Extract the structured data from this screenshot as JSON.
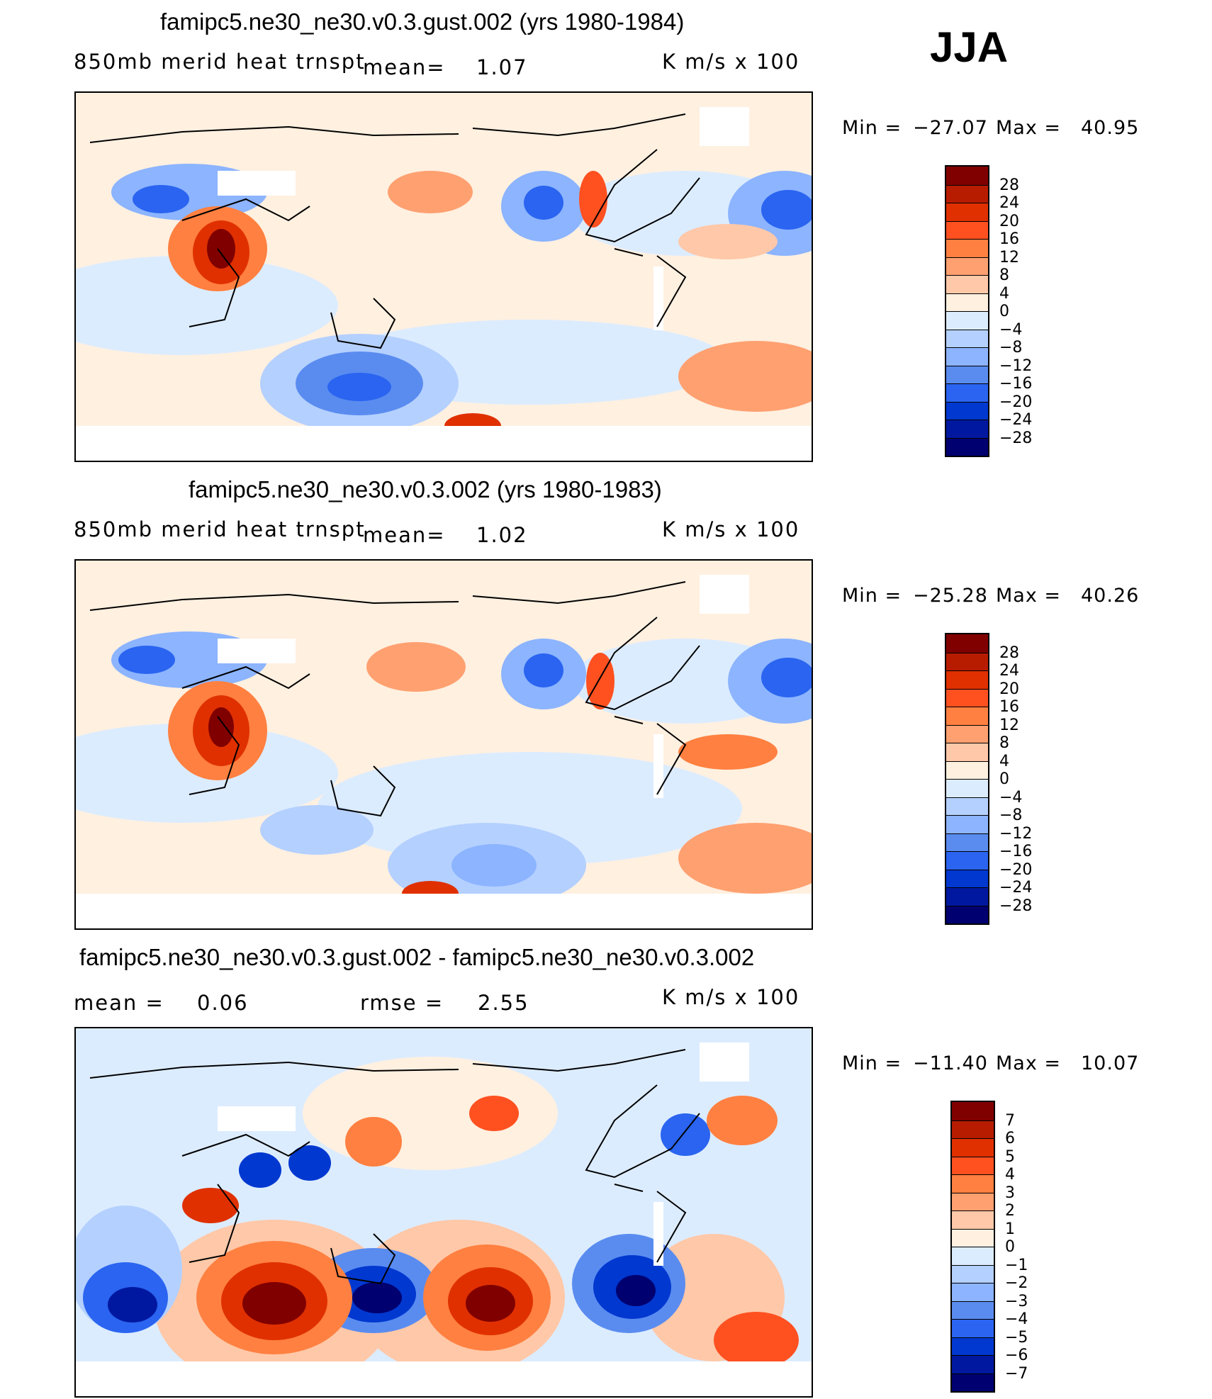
{
  "season": "JJA",
  "chart_data": [
    {
      "type": "heatmap",
      "title": "famipc5.ne30_ne30.v0.3.gust.002 (yrs 1980-1984)",
      "variable": "850mb merid heat trnspt",
      "mean_label": "mean=",
      "mean_value": "1.07",
      "units": "K m/s x 100",
      "min_label": "Min =",
      "min_value": "−27.07",
      "max_label": "Max =",
      "max_value": "40.95",
      "levels": [
        "28",
        "24",
        "20",
        "16",
        "12",
        "8",
        "4",
        "0",
        "−4",
        "−8",
        "−12",
        "−16",
        "−20",
        "−24",
        "−28"
      ],
      "colors": [
        "#800000",
        "#b81c00",
        "#e03000",
        "#ff5020",
        "#ff8040",
        "#ffa070",
        "#ffc8a8",
        "#fff0e0",
        "#dcecff",
        "#b4d0ff",
        "#8cb4ff",
        "#5a8cf0",
        "#2a64f0",
        "#0038d0",
        "#0018a0",
        "#000070"
      ]
    },
    {
      "type": "heatmap",
      "title": "famipc5.ne30_ne30.v0.3.002 (yrs 1980-1983)",
      "variable": "850mb merid heat trnspt",
      "mean_label": "mean=",
      "mean_value": "1.02",
      "units": "K m/s x 100",
      "min_label": "Min =",
      "min_value": "−25.28",
      "max_label": "Max =",
      "max_value": "40.26",
      "levels": [
        "28",
        "24",
        "20",
        "16",
        "12",
        "8",
        "4",
        "0",
        "−4",
        "−8",
        "−12",
        "−16",
        "−20",
        "−24",
        "−28"
      ],
      "colors": [
        "#800000",
        "#b81c00",
        "#e03000",
        "#ff5020",
        "#ff8040",
        "#ffa070",
        "#ffc8a8",
        "#fff0e0",
        "#dcecff",
        "#b4d0ff",
        "#8cb4ff",
        "#5a8cf0",
        "#2a64f0",
        "#0038d0",
        "#0018a0",
        "#000070"
      ]
    },
    {
      "type": "heatmap",
      "title": "famipc5.ne30_ne30.v0.3.gust.002 - famipc5.ne30_ne30.v0.3.002",
      "mean_label": "mean =",
      "mean_value": "0.06",
      "rmse_label": "rmse =",
      "rmse_value": "2.55",
      "units": "K m/s x 100",
      "min_label": "Min =",
      "min_value": "−11.40",
      "max_label": "Max =",
      "max_value": "10.07",
      "levels": [
        "7",
        "6",
        "5",
        "4",
        "3",
        "2",
        "1",
        "0",
        "−1",
        "−2",
        "−3",
        "−4",
        "−5",
        "−6",
        "−7"
      ],
      "colors": [
        "#800000",
        "#b81c00",
        "#e03000",
        "#ff5020",
        "#ff8040",
        "#ffa070",
        "#ffc8a8",
        "#fff0e0",
        "#dcecff",
        "#b4d0ff",
        "#8cb4ff",
        "#5a8cf0",
        "#2a64f0",
        "#0038d0",
        "#0018a0",
        "#000070"
      ]
    }
  ]
}
